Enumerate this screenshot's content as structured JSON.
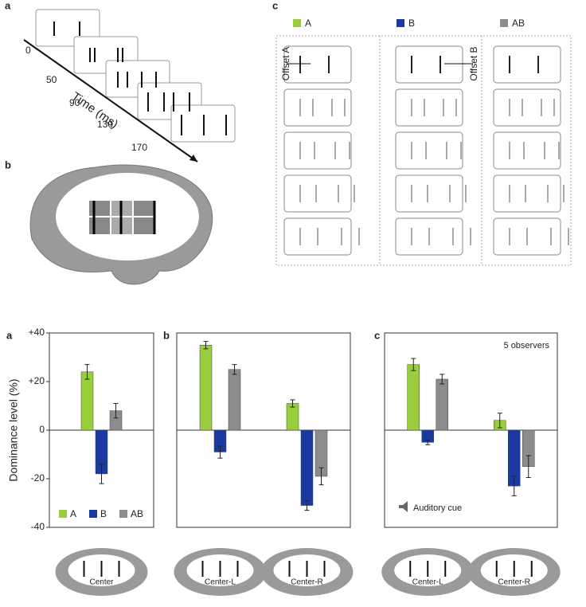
{
  "diagram": {
    "panel_labels": [
      "a",
      "b",
      "c"
    ],
    "time_label": "Time (ms)",
    "times": [
      "0",
      "50",
      "90",
      "130",
      "170"
    ],
    "legend": [
      "A",
      "B",
      "AB"
    ],
    "offset_labels": [
      "Offset A",
      "Offset B"
    ]
  },
  "chart_data": [
    {
      "type": "bar",
      "panel": "a",
      "ylabel": "Dominance level (%)",
      "categories": [
        "Center"
      ],
      "ylim": [
        -40,
        40
      ],
      "yticks": [
        {
          "value": 40,
          "label": "+40"
        },
        {
          "value": 20,
          "label": "+20"
        },
        0,
        -20,
        -40
      ],
      "legend": "lower left",
      "series": [
        {
          "name": "A",
          "color": "#9acd3c",
          "values": [
            24
          ],
          "errors": [
            3
          ]
        },
        {
          "name": "B",
          "color": "#1a3aa0",
          "values": [
            -18
          ],
          "errors": [
            4
          ]
        },
        {
          "name": "AB",
          "color": "#8c8c8c",
          "values": [
            8
          ],
          "errors": [
            3
          ]
        }
      ]
    },
    {
      "type": "bar",
      "panel": "b",
      "categories": [
        "Center-L",
        "Center-R"
      ],
      "ylim": [
        -40,
        40
      ],
      "series": [
        {
          "color": "#9acd3c",
          "values": [
            35,
            11
          ],
          "errors": [
            1.5,
            1.5
          ]
        },
        {
          "color": "#1a3aa0",
          "values": [
            -9,
            -31
          ],
          "errors": [
            2.5,
            2
          ]
        },
        {
          "color": "#8c8c8c",
          "values": [
            25,
            -19
          ],
          "errors": [
            2,
            3.5
          ]
        }
      ]
    },
    {
      "type": "bar",
      "panel": "c",
      "categories": [
        "Center-L",
        "Center-R"
      ],
      "ylim": [
        -40,
        40
      ],
      "annotations": [
        "5 observers",
        "Auditory cue"
      ],
      "series": [
        {
          "color": "#9acd3c",
          "values": [
            27,
            4
          ],
          "errors": [
            2.5,
            3
          ]
        },
        {
          "color": "#1a3aa0",
          "values": [
            -5,
            -23
          ],
          "errors": [
            1,
            4
          ]
        },
        {
          "color": "#8c8c8c",
          "values": [
            21,
            -15
          ],
          "errors": [
            2,
            4.5
          ]
        }
      ]
    }
  ]
}
